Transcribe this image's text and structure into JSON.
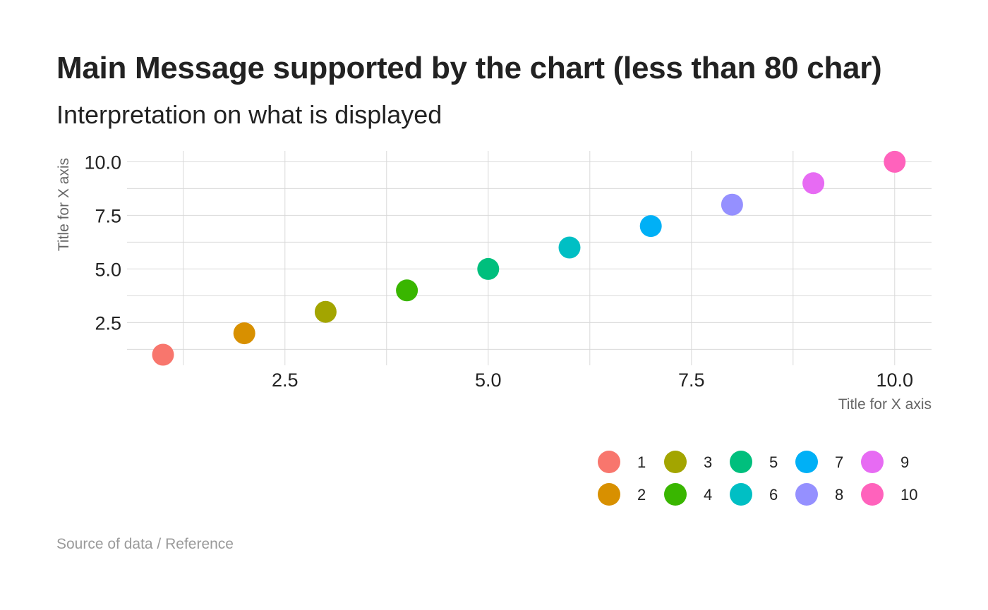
{
  "title": "Main Message supported by the chart (less than 80 char)",
  "subtitle": "Interpretation on what is displayed",
  "caption": "Source of data / Reference",
  "chart_data": {
    "type": "scatter",
    "xlabel": "Title for X axis",
    "ylabel": "Title for X axis",
    "xlim": [
      0.6,
      10.45
    ],
    "ylim": [
      0.6,
      10.45
    ],
    "x_ticks": [
      "2.5",
      "5.0",
      "7.5",
      "10.0"
    ],
    "y_ticks": [
      "2.5",
      "5.0",
      "7.5",
      "10.0"
    ],
    "x_tick_values": [
      2.5,
      5.0,
      7.5,
      10.0
    ],
    "y_tick_values": [
      2.5,
      5.0,
      7.5,
      10.0
    ],
    "grid": true,
    "legend_position": "bottom-right",
    "points": [
      {
        "label": "1",
        "x": 1,
        "y": 1,
        "color": "#F8766D"
      },
      {
        "label": "2",
        "x": 2,
        "y": 2,
        "color": "#D89000"
      },
      {
        "label": "3",
        "x": 3,
        "y": 3,
        "color": "#A3A500"
      },
      {
        "label": "4",
        "x": 4,
        "y": 4,
        "color": "#39B600"
      },
      {
        "label": "5",
        "x": 5,
        "y": 5,
        "color": "#00BF7D"
      },
      {
        "label": "6",
        "x": 6,
        "y": 6,
        "color": "#00BFC4"
      },
      {
        "label": "7",
        "x": 7,
        "y": 7,
        "color": "#00B0F6"
      },
      {
        "label": "8",
        "x": 8,
        "y": 8,
        "color": "#9590FF"
      },
      {
        "label": "9",
        "x": 9,
        "y": 9,
        "color": "#E76BF3"
      },
      {
        "label": "10",
        "x": 10,
        "y": 10,
        "color": "#FF62BC"
      }
    ]
  }
}
